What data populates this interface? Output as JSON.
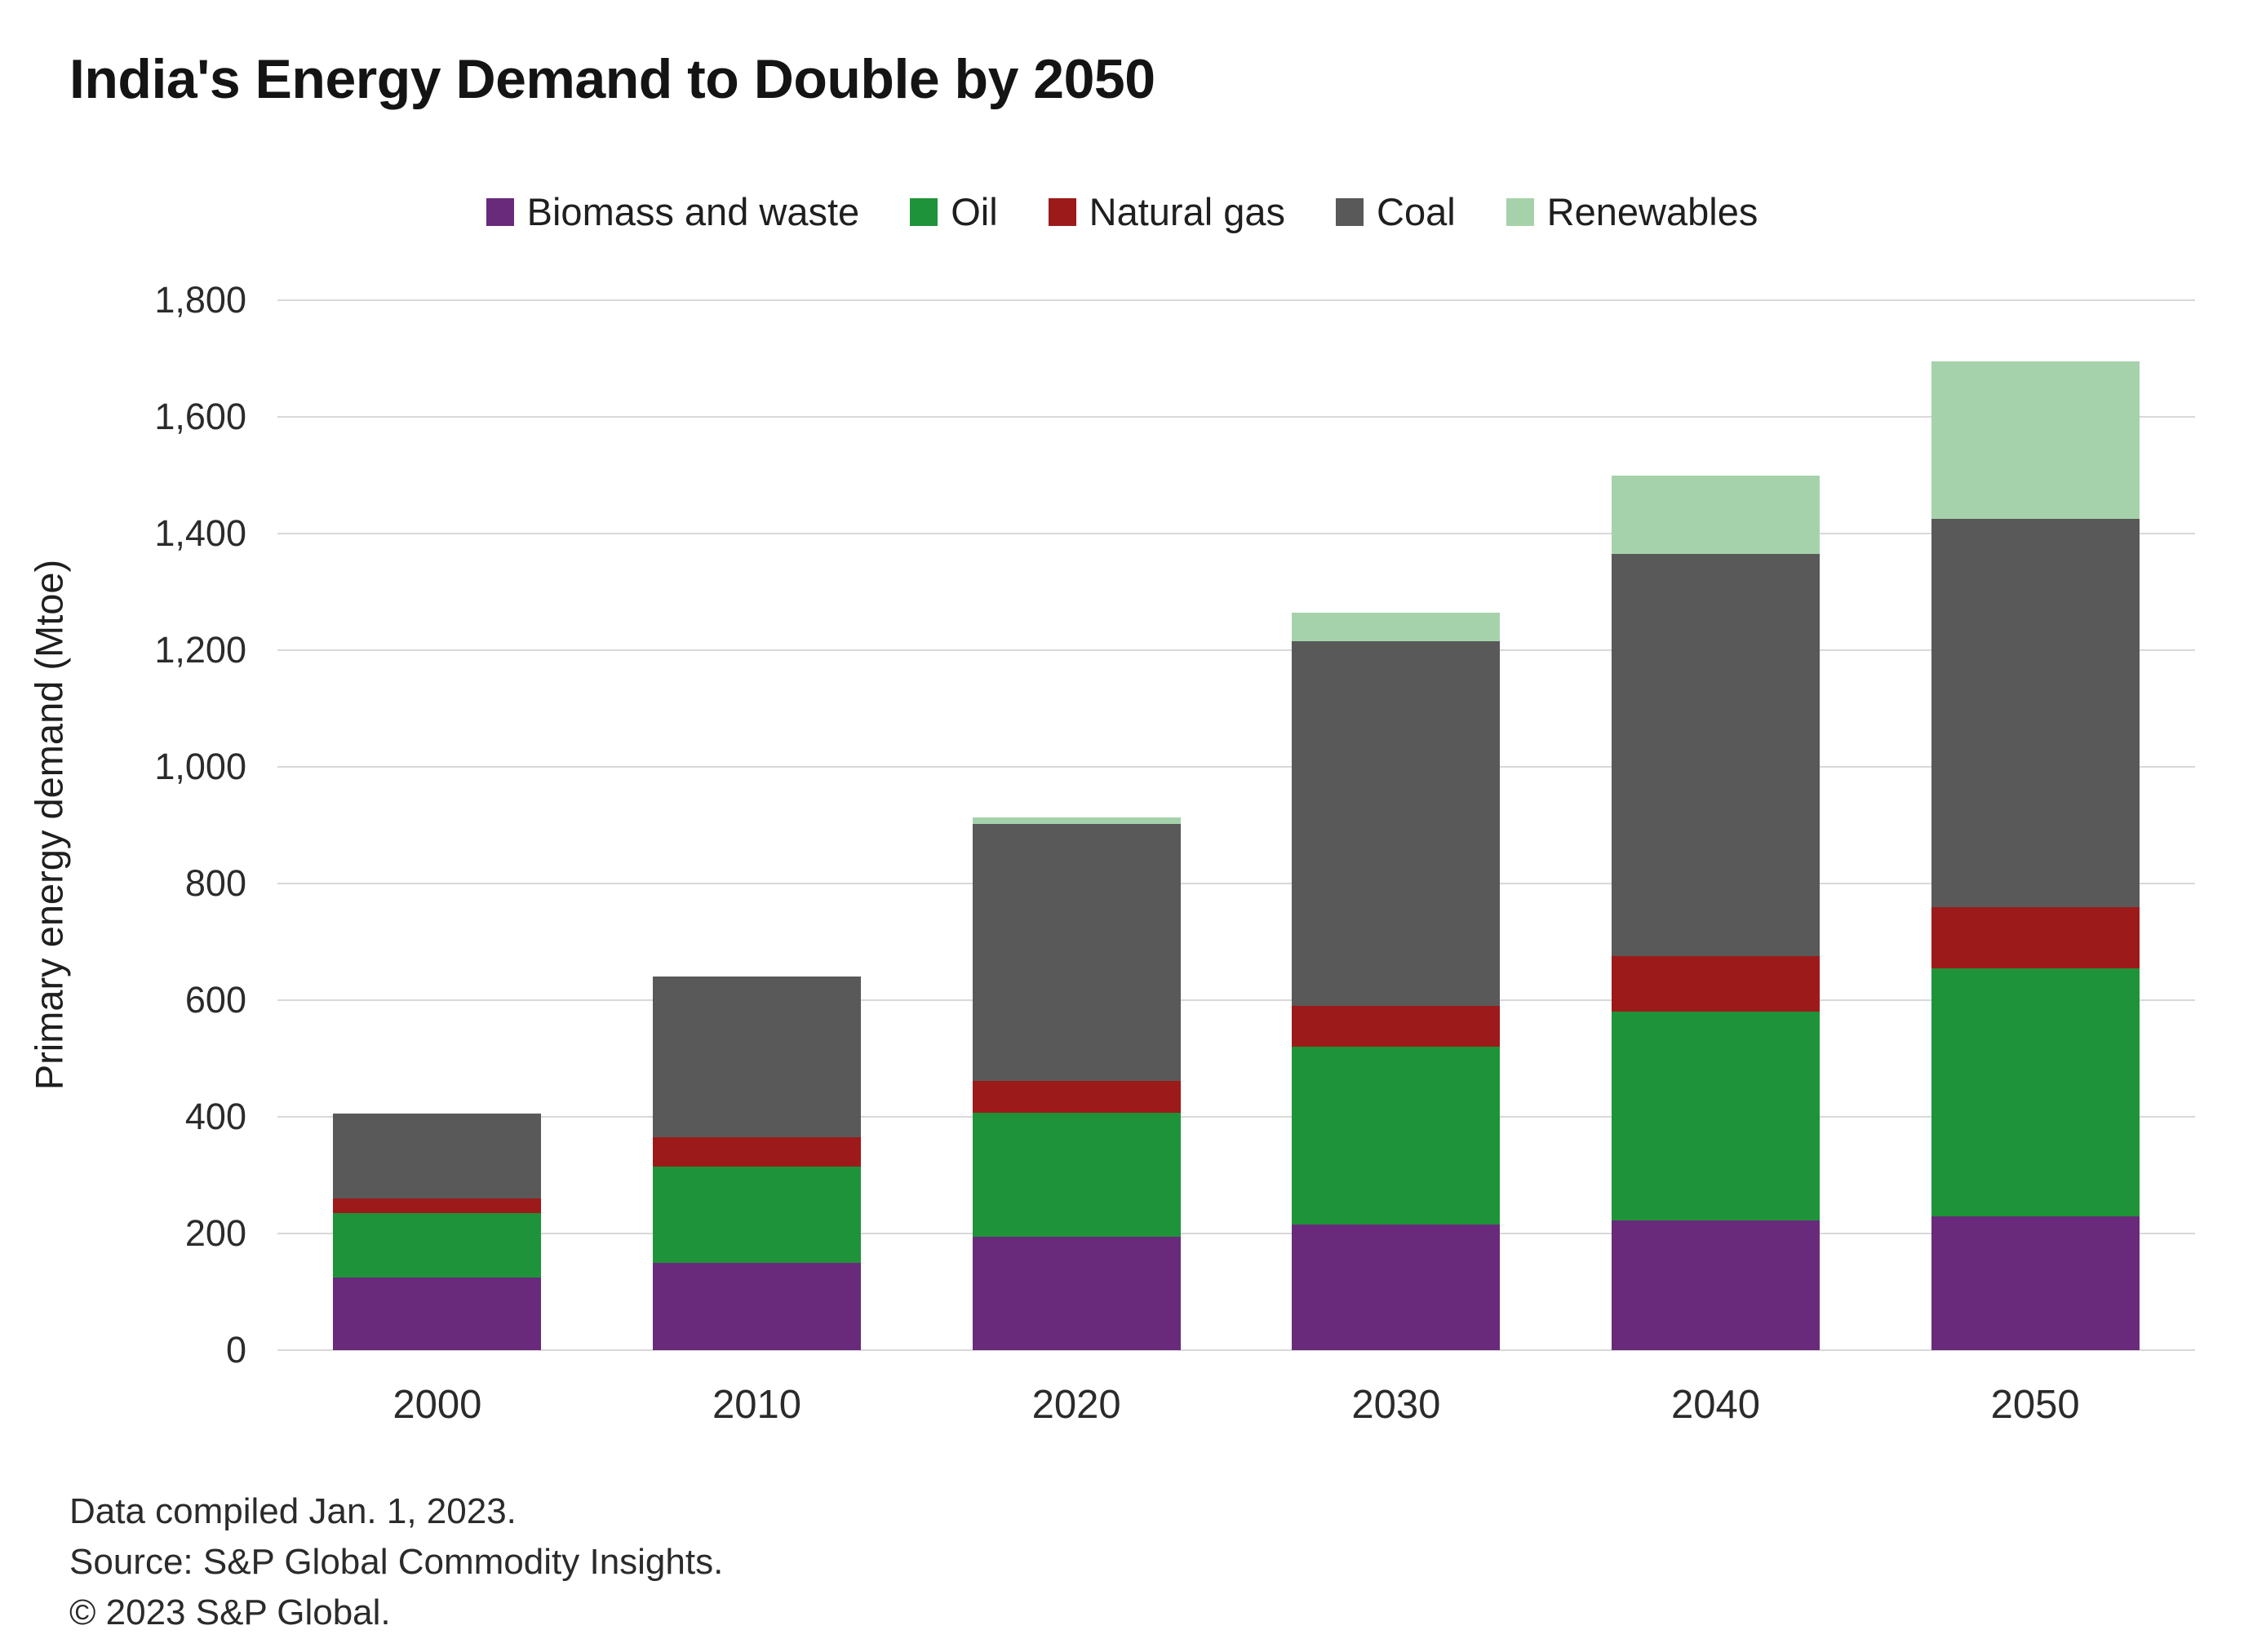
{
  "title": "India's Energy Demand to Double by 2050",
  "colors": {
    "biomass": "#692a7c",
    "oil": "#1f9339",
    "natural_gas": "#9d1a1a",
    "coal": "#595959",
    "renewables": "#a6d2ab",
    "gridline": "#d8d8d8",
    "text": "#2b2b2b",
    "background": "#ffffff"
  },
  "chart_data": {
    "type": "bar",
    "stacked": true,
    "title": "India's Energy Demand to Double by 2050",
    "xlabel": "",
    "ylabel": "Primary energy demand (Mtoe)",
    "ylim": [
      0,
      1800
    ],
    "ytick_step": 200,
    "grid": true,
    "legend_position": "top",
    "categories": [
      "2000",
      "2010",
      "2020",
      "2030",
      "2040",
      "2050"
    ],
    "series": [
      {
        "name": "Biomass and waste",
        "key": "biomass",
        "color": "#692a7c",
        "values": [
          125,
          150,
          195,
          215,
          222,
          230
        ]
      },
      {
        "name": "Oil",
        "key": "oil",
        "color": "#1f9339",
        "values": [
          110,
          165,
          212,
          305,
          358,
          425
        ]
      },
      {
        "name": "Natural gas",
        "key": "natural-gas",
        "color": "#9d1a1a",
        "values": [
          25,
          50,
          55,
          70,
          95,
          105
        ]
      },
      {
        "name": "Coal",
        "key": "coal",
        "color": "#595959",
        "values": [
          145,
          275,
          440,
          625,
          690,
          665
        ]
      },
      {
        "name": "Renewables",
        "key": "renewables",
        "color": "#a6d2ab",
        "values": [
          0,
          0,
          12,
          50,
          135,
          270
        ]
      }
    ]
  },
  "footer": {
    "line1": "Data compiled Jan. 1, 2023.",
    "line2": "Source: S&P Global Commodity Insights.",
    "line3": "© 2023 S&P Global."
  }
}
